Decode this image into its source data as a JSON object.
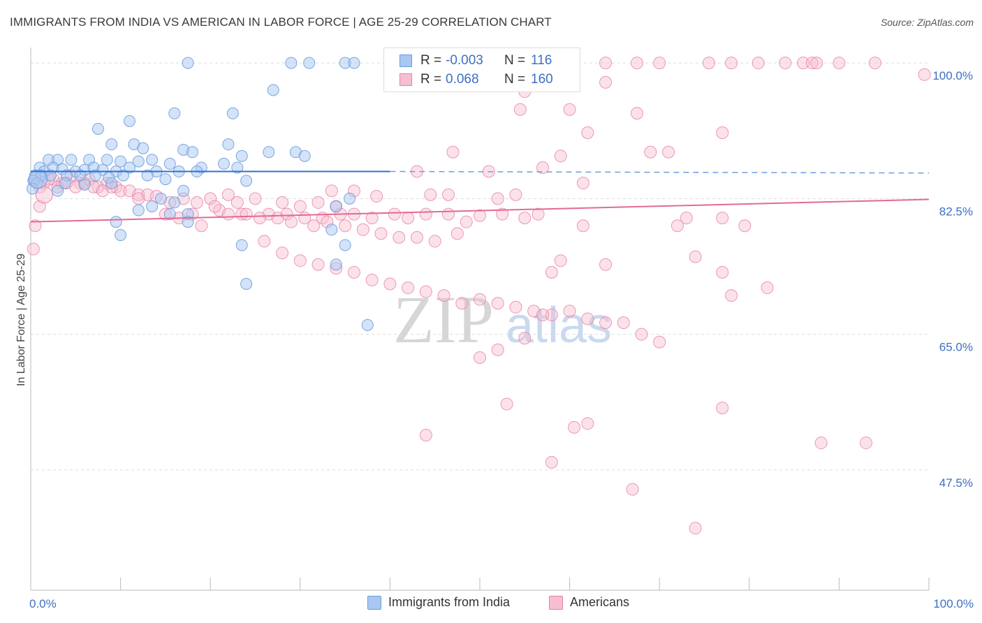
{
  "title": "IMMIGRANTS FROM INDIA VS AMERICAN IN LABOR FORCE | AGE 25-29 CORRELATION CHART",
  "source": "Source: ZipAtlas.com",
  "watermark": {
    "zip": "ZIP",
    "atlas": "atlas"
  },
  "colors": {
    "blue": "#6b9de0",
    "blue_fill": "#a9c7f0",
    "pink": "#ea7fa3",
    "pink_fill": "#f6bfd1",
    "tick_text": "#3d6fc4"
  },
  "legend": {
    "rows": [
      {
        "r_label": "R =",
        "r_value": "-0.003",
        "n_label": "N =",
        "n_value": "116"
      },
      {
        "r_label": "R =",
        "r_value": "0.068",
        "n_label": "N =",
        "n_value": "160"
      }
    ]
  },
  "chart_data": {
    "type": "scatter",
    "title": "IMMIGRANTS FROM INDIA VS AMERICAN IN LABOR FORCE | AGE 25-29 CORRELATION CHART",
    "xlabel": "",
    "ylabel": "In Labor Force | Age 25-29",
    "xlim": [
      0,
      100
    ],
    "ylim": [
      32,
      101
    ],
    "x_tick_labels": [
      "0.0%",
      "100.0%"
    ],
    "y_ticks": [
      100.0,
      82.5,
      65.0,
      47.5
    ],
    "y_tick_labels": [
      "100.0%",
      "82.5%",
      "65.0%",
      "47.5%"
    ],
    "grid": true,
    "legend_position": "bottom",
    "series": [
      {
        "name": "Immigrants from India",
        "color": "#6b9de0",
        "trend": {
          "x": [
            0,
            40
          ],
          "y": [
            86.0,
            86.0
          ],
          "dashed_to": [
            100,
            85.8
          ]
        },
        "points": [
          [
            17.5,
            100
          ],
          [
            29,
            100
          ],
          [
            31,
            100
          ],
          [
            35,
            100
          ],
          [
            36,
            100
          ],
          [
            27,
            96.5
          ],
          [
            7.5,
            91.5
          ],
          [
            11,
            92.5
          ],
          [
            16,
            93.5
          ],
          [
            22.5,
            93.5
          ],
          [
            9,
            89.5
          ],
          [
            11.5,
            89.5
          ],
          [
            12.5,
            89
          ],
          [
            17,
            88.8
          ],
          [
            18,
            88.5
          ],
          [
            22,
            89.5
          ],
          [
            23.5,
            88
          ],
          [
            26.5,
            88.5
          ],
          [
            29.5,
            88.5
          ],
          [
            30.5,
            88
          ],
          [
            2,
            87.5
          ],
          [
            3,
            87.5
          ],
          [
            4.5,
            87.5
          ],
          [
            6.5,
            87.5
          ],
          [
            8.5,
            87.5
          ],
          [
            10,
            87.3
          ],
          [
            12,
            87.3
          ],
          [
            13.5,
            87.5
          ],
          [
            15.5,
            87
          ],
          [
            19,
            86.5
          ],
          [
            21.5,
            87
          ],
          [
            23,
            86.5
          ],
          [
            1,
            86.5
          ],
          [
            1.5,
            86
          ],
          [
            2.5,
            86.5
          ],
          [
            3.5,
            86.3
          ],
          [
            5,
            86
          ],
          [
            6,
            86.2
          ],
          [
            7,
            86.5
          ],
          [
            8,
            86.2
          ],
          [
            9.5,
            86
          ],
          [
            11,
            86.5
          ],
          [
            14,
            86
          ],
          [
            16.5,
            86
          ],
          [
            18.5,
            86
          ],
          [
            0.5,
            85.5
          ],
          [
            1.2,
            85.5
          ],
          [
            2.2,
            85.5
          ],
          [
            4,
            85.5
          ],
          [
            5.5,
            85.5
          ],
          [
            7.2,
            85.5
          ],
          [
            8.7,
            85.2
          ],
          [
            10.3,
            85.5
          ],
          [
            13,
            85.5
          ],
          [
            15,
            85
          ],
          [
            0.3,
            84.8
          ],
          [
            0.7,
            84.5
          ],
          [
            3.8,
            84.5
          ],
          [
            6,
            84.3
          ],
          [
            9,
            84.5
          ],
          [
            24,
            84.8
          ],
          [
            0.2,
            83.8
          ],
          [
            17,
            83.5
          ],
          [
            3,
            83.5
          ],
          [
            14.5,
            82.5
          ],
          [
            35.5,
            82.5
          ],
          [
            16,
            82
          ],
          [
            34,
            81.5
          ],
          [
            13.5,
            81.5
          ],
          [
            12,
            81
          ],
          [
            15.5,
            80.5
          ],
          [
            17.5,
            80.5
          ],
          [
            9.5,
            79.5
          ],
          [
            17.5,
            79.5
          ],
          [
            33.5,
            78.5
          ],
          [
            10,
            77.8
          ],
          [
            23.5,
            76.5
          ],
          [
            35,
            76.5
          ],
          [
            34,
            74
          ],
          [
            24,
            71.5
          ],
          [
            37.5,
            66.2
          ]
        ]
      },
      {
        "name": "Americans",
        "color": "#ea7fa3",
        "trend": {
          "x": [
            0,
            100
          ],
          "y": [
            79.5,
            82.4
          ]
        },
        "points": [
          [
            64,
            100
          ],
          [
            67.5,
            100
          ],
          [
            70,
            100
          ],
          [
            75.5,
            100
          ],
          [
            78,
            100
          ],
          [
            81,
            100
          ],
          [
            84,
            100
          ],
          [
            86,
            100
          ],
          [
            87,
            100
          ],
          [
            87.5,
            100
          ],
          [
            90,
            100
          ],
          [
            94,
            100
          ],
          [
            99.5,
            98.5
          ],
          [
            64,
            97.5
          ],
          [
            55,
            96.3
          ],
          [
            54.5,
            94
          ],
          [
            60,
            94
          ],
          [
            67.5,
            93.5
          ],
          [
            62,
            91
          ],
          [
            77,
            91
          ],
          [
            59,
            88
          ],
          [
            69,
            88.5
          ],
          [
            71,
            88.5
          ],
          [
            47,
            88.5
          ],
          [
            43,
            86
          ],
          [
            51,
            86
          ],
          [
            57,
            86.5
          ],
          [
            0.5,
            85
          ],
          [
            1.5,
            84.5
          ],
          [
            2.5,
            85
          ],
          [
            3.5,
            84.5
          ],
          [
            4.5,
            85.5
          ],
          [
            5.5,
            84.5
          ],
          [
            6.5,
            85
          ],
          [
            7.5,
            84
          ],
          [
            8.5,
            84.5
          ],
          [
            9.5,
            84
          ],
          [
            10,
            83.5
          ],
          [
            11,
            83.5
          ],
          [
            12,
            83
          ],
          [
            13,
            83
          ],
          [
            1,
            84
          ],
          [
            2,
            85
          ],
          [
            3,
            84
          ],
          [
            4,
            84.5
          ],
          [
            5,
            84
          ],
          [
            6,
            84.5
          ],
          [
            7,
            84
          ],
          [
            8,
            83.5
          ],
          [
            9,
            84
          ],
          [
            61.5,
            84.5
          ],
          [
            33.5,
            83.5
          ],
          [
            36,
            83.5
          ],
          [
            44.5,
            83
          ],
          [
            46.5,
            83
          ],
          [
            52,
            82.5
          ],
          [
            54,
            83
          ],
          [
            38.5,
            82.8
          ],
          [
            12,
            82.5
          ],
          [
            14,
            82.8
          ],
          [
            15.5,
            82
          ],
          [
            17,
            82.5
          ],
          [
            18.5,
            82
          ],
          [
            20,
            82.5
          ],
          [
            22,
            83
          ],
          [
            23,
            82
          ],
          [
            25,
            82.5
          ],
          [
            28,
            82
          ],
          [
            30,
            81.5
          ],
          [
            32,
            82
          ],
          [
            34,
            81.5
          ],
          [
            1,
            81.5
          ],
          [
            21,
            81
          ],
          [
            23.5,
            80.5
          ],
          [
            20.5,
            81.5
          ],
          [
            22,
            80.5
          ],
          [
            24,
            80.5
          ],
          [
            26.5,
            80.5
          ],
          [
            28.5,
            80.5
          ],
          [
            30.5,
            80
          ],
          [
            32.5,
            80
          ],
          [
            34.5,
            80.5
          ],
          [
            36,
            80.5
          ],
          [
            38,
            80
          ],
          [
            40.5,
            80.5
          ],
          [
            42,
            80
          ],
          [
            44,
            80.5
          ],
          [
            46.5,
            80.5
          ],
          [
            48.5,
            79.5
          ],
          [
            50,
            80.3
          ],
          [
            52.5,
            80.5
          ],
          [
            55,
            80
          ],
          [
            73,
            80
          ],
          [
            77,
            80
          ],
          [
            61.5,
            79
          ],
          [
            72,
            79
          ],
          [
            79.5,
            79
          ],
          [
            15,
            80.5
          ],
          [
            16.5,
            80
          ],
          [
            18,
            80.5
          ],
          [
            19,
            79
          ],
          [
            25.5,
            80
          ],
          [
            27.5,
            80
          ],
          [
            29,
            79.5
          ],
          [
            31.5,
            79
          ],
          [
            33,
            79.5
          ],
          [
            35,
            79
          ],
          [
            37,
            78.5
          ],
          [
            39,
            78
          ],
          [
            41,
            77.5
          ],
          [
            43,
            77.5
          ],
          [
            45,
            77
          ],
          [
            47.5,
            78
          ],
          [
            0.5,
            79
          ],
          [
            0.3,
            76
          ],
          [
            26,
            77
          ],
          [
            28,
            75.5
          ],
          [
            30,
            74.5
          ],
          [
            32,
            74
          ],
          [
            34,
            73.5
          ],
          [
            36,
            73
          ],
          [
            38,
            72
          ],
          [
            40,
            71.5
          ],
          [
            42,
            71
          ],
          [
            44,
            70.5
          ],
          [
            46,
            70
          ],
          [
            48,
            69
          ],
          [
            50,
            69.5
          ],
          [
            52,
            69
          ],
          [
            54,
            68.5
          ],
          [
            56,
            68
          ],
          [
            58,
            67.5
          ],
          [
            60,
            68
          ],
          [
            62,
            67
          ],
          [
            64,
            66.5
          ],
          [
            66,
            66.5
          ],
          [
            68,
            65
          ],
          [
            70,
            64
          ],
          [
            56.5,
            80.5
          ],
          [
            64,
            74
          ],
          [
            74,
            75
          ],
          [
            59,
            74.5
          ],
          [
            77,
            73
          ],
          [
            58,
            73
          ],
          [
            78,
            70
          ],
          [
            82,
            71
          ],
          [
            57,
            67.5
          ],
          [
            55,
            64.5
          ],
          [
            52,
            63
          ],
          [
            50,
            62
          ],
          [
            53,
            56
          ],
          [
            60.5,
            53
          ],
          [
            62,
            53.5
          ],
          [
            77,
            55.5
          ],
          [
            88,
            51
          ],
          [
            93,
            51
          ],
          [
            44,
            52
          ],
          [
            58,
            48.5
          ],
          [
            67,
            45
          ],
          [
            74,
            40
          ]
        ]
      }
    ]
  }
}
